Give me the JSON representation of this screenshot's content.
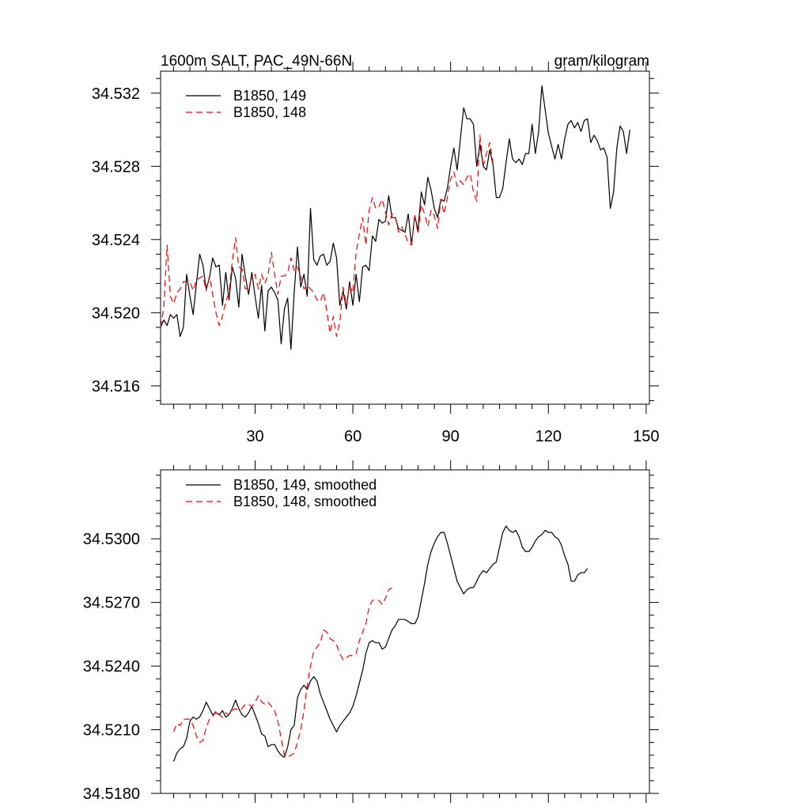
{
  "chart_data": [
    {
      "type": "line",
      "title": "1600m SALT, PAC_49N-66N",
      "units": "gram/kilogram",
      "xlim": [
        1,
        151
      ],
      "ylim": [
        34.515,
        34.5332
      ],
      "xticks": [
        30,
        60,
        90,
        120,
        150
      ],
      "yticks": [
        34.516,
        34.52,
        34.524,
        34.528,
        34.532
      ],
      "ytick_labels": [
        "34.516",
        "34.520",
        "34.524",
        "34.528",
        "34.532"
      ],
      "xtick_labels": [
        "30",
        "60",
        "90",
        "120",
        "150"
      ],
      "show_xtick_labels": true,
      "legend_position": "top-left",
      "series": [
        {
          "name": "B1850, 149",
          "color": "#000000",
          "dash": "solid",
          "x_start": 1,
          "values": [
            34.5192,
            34.5196,
            34.5193,
            34.5199,
            34.5197,
            34.5199,
            34.5187,
            34.5192,
            34.5221,
            34.5209,
            34.5199,
            34.5216,
            34.5232,
            34.5226,
            34.5213,
            34.5219,
            34.523,
            34.5225,
            34.5226,
            34.5204,
            34.5222,
            34.5207,
            34.5225,
            34.5219,
            34.5203,
            34.5232,
            34.522,
            34.521,
            34.5222,
            34.5209,
            34.5197,
            34.5215,
            34.519,
            34.5212,
            34.5214,
            34.5211,
            34.5207,
            34.5183,
            34.5202,
            34.5208,
            34.518,
            34.5211,
            34.5236,
            34.5214,
            34.5221,
            34.5209,
            34.5257,
            34.5229,
            34.5226,
            34.5231,
            34.5232,
            34.5226,
            34.5228,
            34.5238,
            34.523,
            34.5204,
            34.5212,
            34.5202,
            34.5217,
            34.5204,
            34.5221,
            34.5206,
            34.5225,
            34.5226,
            34.5223,
            34.5242,
            34.5239,
            34.5251,
            34.5249,
            34.525,
            34.5264,
            34.5252,
            34.5252,
            34.5246,
            34.5245,
            34.5244,
            34.5254,
            34.5237,
            34.5253,
            34.5245,
            34.5266,
            34.5259,
            34.5274,
            34.5267,
            34.5257,
            34.5252,
            34.5262,
            34.5261,
            34.5268,
            34.528,
            34.529,
            34.5278,
            34.5295,
            34.5312,
            34.5306,
            34.5306,
            34.5303,
            34.528,
            34.5292,
            34.528,
            34.5278,
            34.5289,
            34.5281,
            34.5263,
            34.5263,
            34.5268,
            34.5282,
            34.5295,
            34.5284,
            34.5282,
            34.5284,
            34.5281,
            34.5287,
            34.5287,
            34.5303,
            34.5287,
            34.5299,
            34.5324,
            34.5311,
            34.5298,
            34.5291,
            34.5284,
            34.5292,
            34.5284,
            34.5295,
            34.5303,
            34.5305,
            34.5301,
            34.5304,
            34.5299,
            34.5305,
            34.5306,
            34.5293,
            34.5297,
            34.5294,
            34.5289,
            34.529,
            34.5285,
            34.5257,
            34.5266,
            34.529,
            34.5302,
            34.5299,
            34.5287,
            34.53
          ]
        },
        {
          "name": "B1850, 148",
          "color": "#ff0000",
          "dash": "8,5",
          "x_start": 1,
          "values": [
            34.5192,
            34.5203,
            34.5237,
            34.5209,
            34.5205,
            34.5211,
            34.5213,
            34.5217,
            34.5217,
            34.5217,
            34.5212,
            34.5218,
            34.5219,
            34.522,
            34.5212,
            34.522,
            34.521,
            34.52,
            34.5193,
            34.5198,
            34.5206,
            34.5211,
            34.5228,
            34.5241,
            34.5225,
            34.5224,
            34.5213,
            34.5214,
            34.5219,
            34.5221,
            34.5213,
            34.5221,
            34.5216,
            34.5221,
            34.5233,
            34.5221,
            34.521,
            34.522,
            34.522,
            34.5222,
            34.523,
            34.5223,
            34.5225,
            34.522,
            34.5213,
            34.5215,
            34.5213,
            34.5211,
            34.5207,
            34.5206,
            34.5211,
            34.5201,
            34.5189,
            34.5198,
            34.5187,
            34.5195,
            34.5214,
            34.5204,
            34.5215,
            34.5211,
            34.5233,
            34.5243,
            34.5252,
            34.5237,
            34.5256,
            34.5263,
            34.5257,
            34.5258,
            34.5262,
            34.5255,
            34.5248,
            34.5254,
            34.5253,
            34.5244,
            34.5247,
            34.5243,
            34.5238,
            34.5237,
            34.5253,
            34.5243,
            34.5259,
            34.5254,
            34.5247,
            34.5256,
            34.5253,
            34.5246,
            34.5262,
            34.5254,
            34.5263,
            34.5273,
            34.5277,
            34.5269,
            34.5272,
            34.527,
            34.5274,
            34.5276,
            34.5266,
            34.5261,
            34.5297,
            34.528,
            34.5287,
            34.5293,
            34.5282
          ]
        }
      ]
    },
    {
      "type": "line",
      "title": "",
      "xlim": [
        1,
        151
      ],
      "ylim": [
        34.518,
        34.53325
      ],
      "xticks": [
        30,
        60,
        90,
        120,
        150
      ],
      "yticks": [
        34.518,
        34.521,
        34.524,
        34.527,
        34.53
      ],
      "ytick_labels": [
        "34.5180",
        "34.5210",
        "34.5240",
        "34.5270",
        "34.5300"
      ],
      "xtick_labels": [],
      "show_xtick_labels": false,
      "legend_position": "top-left",
      "series": [
        {
          "name": "B1850, 149, smoothed",
          "color": "#000000",
          "dash": "solid",
          "x_start": 5,
          "values": [
            34.5195,
            34.5199,
            34.5201,
            34.5202,
            34.5206,
            34.5214,
            34.5216,
            34.5215,
            34.5216,
            34.5219,
            34.5223,
            34.522,
            34.5217,
            34.5218,
            34.5217,
            34.5219,
            34.5216,
            34.5217,
            34.522,
            34.5224,
            34.522,
            34.5217,
            34.5216,
            34.5218,
            34.5221,
            34.5217,
            34.5213,
            34.5208,
            34.5207,
            34.5202,
            34.5203,
            34.5203,
            34.52,
            34.5198,
            34.5197,
            34.5202,
            34.521,
            34.5212,
            34.5225,
            34.5229,
            34.5231,
            34.5229,
            34.5233,
            34.5235,
            34.5233,
            34.5227,
            34.5223,
            34.5219,
            34.5215,
            34.5212,
            34.5209,
            34.5212,
            34.5214,
            34.5216,
            34.5218,
            34.5221,
            34.5226,
            34.5232,
            34.5238,
            34.5246,
            34.5251,
            34.5252,
            34.5251,
            34.5251,
            34.5248,
            34.5249,
            34.5253,
            34.5257,
            34.5259,
            34.5262,
            34.5262,
            34.5262,
            34.5261,
            34.526,
            34.526,
            34.5263,
            34.5271,
            34.5279,
            34.5288,
            34.5294,
            34.5298,
            34.5301,
            34.5303,
            34.5303,
            34.5298,
            34.5292,
            34.5286,
            34.528,
            34.5277,
            34.5274,
            34.5276,
            34.5277,
            34.5277,
            34.528,
            34.5283,
            34.5285,
            34.5284,
            34.5286,
            34.5288,
            34.5289,
            34.5296,
            34.5303,
            34.5306,
            34.5304,
            34.5303,
            34.5304,
            34.5301,
            34.5296,
            34.5294,
            34.5294,
            34.5296,
            34.5299,
            34.5301,
            34.5302,
            34.5304,
            34.5303,
            34.5303,
            34.5301,
            34.53,
            34.5297,
            34.5292,
            34.5288,
            34.528,
            34.528,
            34.5283,
            34.5284,
            34.5284,
            34.5286
          ]
        },
        {
          "name": "B1850, 148, smoothed",
          "color": "#ff0000",
          "dash": "8,5",
          "x_start": 5,
          "values": [
            34.5209,
            34.5213,
            34.5212,
            34.5215,
            34.5215,
            34.5215,
            34.5212,
            34.5207,
            34.5204,
            34.5205,
            34.5211,
            34.5215,
            34.5216,
            34.5219,
            34.5217,
            34.5216,
            34.5218,
            34.5217,
            34.5219,
            34.522,
            34.5219,
            34.522,
            34.5222,
            34.5222,
            34.5221,
            34.5223,
            34.5226,
            34.5223,
            34.5222,
            34.5223,
            34.5221,
            34.5219,
            34.5214,
            34.5206,
            34.5198,
            34.5197,
            34.5198,
            34.5199,
            34.5204,
            34.521,
            34.5219,
            34.5231,
            34.524,
            34.5247,
            34.5249,
            34.5251,
            34.5257,
            34.5256,
            34.5253,
            34.5252,
            34.525,
            34.5246,
            34.5243,
            34.5244,
            34.5245,
            34.5245,
            34.5246,
            34.5252,
            34.5256,
            34.526,
            34.5268,
            34.5271,
            34.5271,
            34.5271,
            34.5269,
            34.5272,
            34.5276,
            34.5277
          ]
        }
      ]
    }
  ]
}
